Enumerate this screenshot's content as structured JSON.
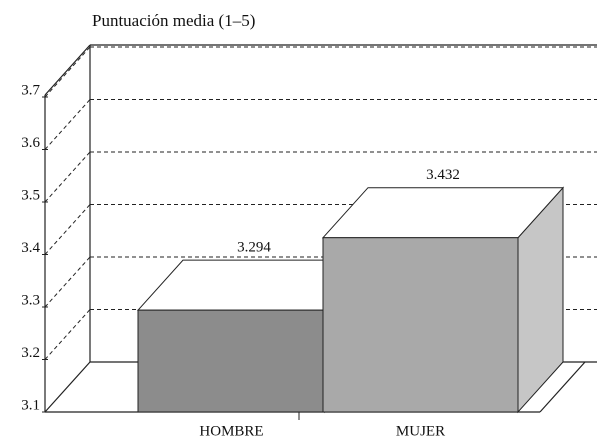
{
  "chart_data": {
    "type": "bar3d",
    "title": "Puntuación media (1–5)",
    "categories": [
      "HOMBRE",
      "MUJER"
    ],
    "values": [
      3.294,
      3.432
    ],
    "colors": [
      "#8c8c8c",
      "#a9a9a9"
    ],
    "ylim": [
      3.1,
      3.7
    ],
    "yticks": [
      3.1,
      3.2,
      3.3,
      3.4,
      3.5,
      3.6,
      3.7
    ],
    "grid": true
  }
}
